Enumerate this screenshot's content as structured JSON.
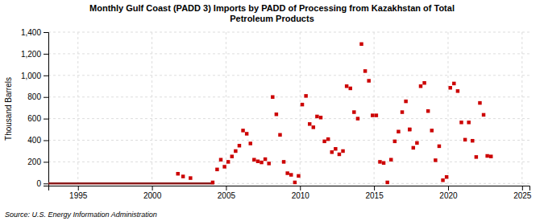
{
  "chart_data": {
    "type": "scatter",
    "title": "Monthly Gulf Coast (PADD 3) Imports by PADD of Processing from Kazakhstan of Total\nPetroleum Products",
    "y_label": "Thousand Barrels",
    "annotations": [
      "Source: U.S. Energy Information Administration"
    ],
    "xlim": [
      1993.0,
      2025.5
    ],
    "ylim": [
      -20,
      1400
    ],
    "xticks": [
      1995,
      2000,
      2005,
      2010,
      2015,
      2020,
      2025
    ],
    "yticks": [
      0,
      200,
      400,
      600,
      800,
      {
        "value": 1000,
        "label": "1,000"
      },
      {
        "value": 1200,
        "label": "1,200"
      },
      {
        "value": 1400,
        "label": "1,400"
      }
    ],
    "grid": true,
    "series": [
      {
        "type": "line",
        "color": "#8B1A1A",
        "line_style": "solid",
        "x": [
          1993.0,
          2004.2
        ],
        "values": [
          0,
          0
        ]
      },
      {
        "type": "scatter",
        "color": "#CC0000",
        "marker": "square",
        "x": [
          2001.75,
          2002.1,
          2002.6,
          2004.1,
          2004.4,
          2004.65,
          2004.9,
          2005.15,
          2005.4,
          2005.65,
          2005.9,
          2006.15,
          2006.4,
          2006.65,
          2006.9,
          2007.15,
          2007.4,
          2007.65,
          2007.9,
          2008.15,
          2008.4,
          2008.65,
          2009.15,
          2009.4,
          2009.65,
          2009.9,
          2010.15,
          2010.4,
          2010.65,
          2010.9,
          2011.15,
          2011.4,
          2011.65,
          2011.9,
          2012.15,
          2012.4,
          2012.65,
          2012.9,
          2013.15,
          2013.4,
          2013.65,
          2013.9,
          2014.15,
          2014.4,
          2014.65,
          2014.9,
          2015.15,
          2015.4,
          2015.65,
          2015.9,
          2016.15,
          2016.4,
          2016.65,
          2016.9,
          2017.15,
          2017.4,
          2017.65,
          2017.9,
          2018.15,
          2018.4,
          2018.65,
          2018.9,
          2019.15,
          2019.4,
          2019.65,
          2019.9,
          2020.15,
          2020.4,
          2020.65,
          2020.9,
          2021.15,
          2021.4,
          2021.65,
          2021.9,
          2022.15,
          2022.4,
          2022.65,
          2022.9,
          2008.9,
          2017.4
        ],
        "values": [
          90,
          65,
          50,
          10,
          130,
          220,
          155,
          200,
          250,
          300,
          350,
          490,
          460,
          370,
          220,
          205,
          195,
          225,
          185,
          800,
          640,
          450,
          95,
          80,
          10,
          70,
          730,
          810,
          550,
          520,
          620,
          610,
          390,
          410,
          290,
          320,
          270,
          300,
          900,
          880,
          660,
          600,
          1290,
          1040,
          950,
          630,
          630,
          200,
          190,
          10,
          220,
          390,
          480,
          660,
          760,
          500,
          330,
          375,
          900,
          930,
          670,
          490,
          215,
          345,
          30,
          60,
          885,
          925,
          855,
          565,
          405,
          565,
          395,
          245,
          745,
          635,
          255,
          250,
          200,
          500
        ]
      }
    ]
  }
}
